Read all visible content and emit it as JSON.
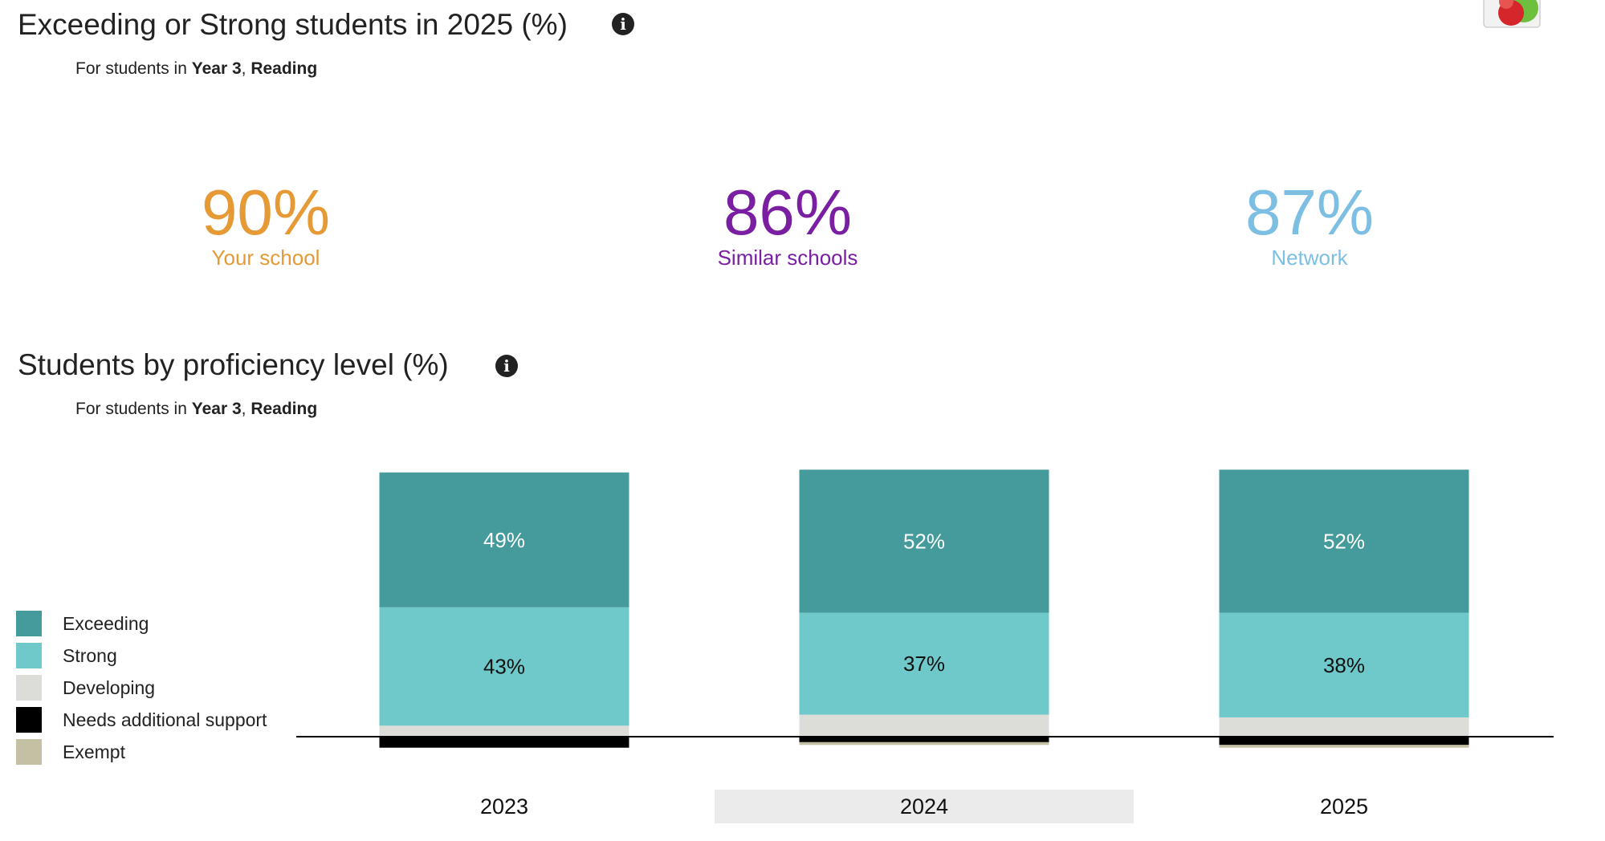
{
  "section1": {
    "title": "Exceeding or Strong students in 2025 (%)",
    "subtitle_prefix": "For students in ",
    "year": "Year 3",
    "separator": ", ",
    "subject": "Reading"
  },
  "kpis": [
    {
      "value": "90%",
      "label": "Your school",
      "color": "#e59a35"
    },
    {
      "value": "86%",
      "label": "Similar schools",
      "color": "#7a1fa2"
    },
    {
      "value": "87%",
      "label": "Network",
      "color": "#7cbfe3"
    }
  ],
  "section2": {
    "title": "Students by proficiency level (%)",
    "subtitle_prefix": "For students in ",
    "year": "Year 3",
    "separator": ", ",
    "subject": "Reading"
  },
  "legend": [
    {
      "label": "Exceeding",
      "color": "#459b9c"
    },
    {
      "label": "Strong",
      "color": "#6fc9ca"
    },
    {
      "label": "Developing",
      "color": "#dcdcd8"
    },
    {
      "label": "Needs additional support",
      "color": "#000000"
    },
    {
      "label": "Exempt",
      "color": "#c4c0a4"
    }
  ],
  "chart_data": {
    "type": "bar",
    "stacked": "diverging",
    "categories": [
      "2023",
      "2024",
      "2025"
    ],
    "highlighted_category": "2024",
    "series": [
      {
        "name": "Exceeding",
        "color": "#459b9c",
        "values": [
          49,
          52,
          52
        ],
        "labels": [
          "49%",
          "52%",
          "52%"
        ]
      },
      {
        "name": "Strong",
        "color": "#6fc9ca",
        "values": [
          43,
          37,
          38
        ],
        "labels": [
          "43%",
          "37%",
          "38%"
        ]
      },
      {
        "name": "Developing",
        "color": "#dcdcd8",
        "values": [
          4,
          8,
          7
        ]
      },
      {
        "name": "Needs additional support",
        "color": "#000000",
        "values": [
          4,
          2,
          3
        ],
        "below_baseline": true
      },
      {
        "name": "Exempt",
        "color": "#c4c0a4",
        "values": [
          0,
          1,
          1
        ],
        "below_baseline": true
      }
    ],
    "grid": false,
    "legend_position": "left"
  }
}
